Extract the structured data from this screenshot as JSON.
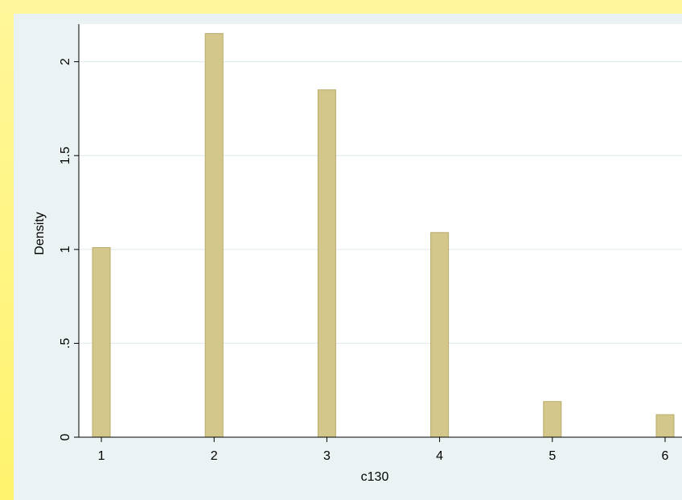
{
  "colors": {
    "slide_background": "#fff47a",
    "plot_background": "#ffffff",
    "graph_background": "#eaf2f3",
    "bar_fill": "#d3c78b",
    "bar_stroke": "#b8aa68",
    "gridline": "#e3ecef"
  },
  "chart_data": {
    "type": "bar",
    "title": "",
    "xlabel": "c130",
    "ylabel": "Density",
    "x": [
      1,
      2,
      3,
      4,
      5,
      6
    ],
    "values": [
      1.01,
      2.15,
      1.85,
      1.09,
      0.19,
      0.12
    ],
    "xlim": [
      0.8,
      6.15
    ],
    "ylim": [
      0,
      2.2
    ],
    "xticks": [
      1,
      2,
      3,
      4,
      5,
      6
    ],
    "yticks": [
      0,
      0.5,
      1,
      1.5,
      2
    ],
    "ytick_labels": [
      "0",
      ".5",
      "1",
      "1.5",
      "2"
    ],
    "grid": true,
    "legend": "none"
  }
}
